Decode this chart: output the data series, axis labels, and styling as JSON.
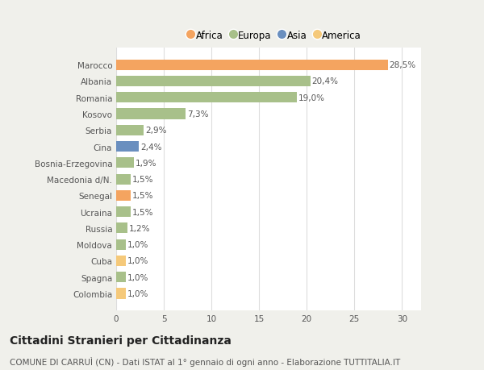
{
  "categories": [
    "Colombia",
    "Spagna",
    "Cuba",
    "Moldova",
    "Russia",
    "Ucraina",
    "Senegal",
    "Macedonia d/N.",
    "Bosnia-Erzegovina",
    "Cina",
    "Serbia",
    "Kosovo",
    "Romania",
    "Albania",
    "Marocco"
  ],
  "values": [
    1.0,
    1.0,
    1.0,
    1.0,
    1.2,
    1.5,
    1.5,
    1.5,
    1.9,
    2.4,
    2.9,
    7.3,
    19.0,
    20.4,
    28.5
  ],
  "labels": [
    "1,0%",
    "1,0%",
    "1,0%",
    "1,0%",
    "1,2%",
    "1,5%",
    "1,5%",
    "1,5%",
    "1,9%",
    "2,4%",
    "2,9%",
    "7,3%",
    "19,0%",
    "20,4%",
    "28,5%"
  ],
  "bar_colors": [
    "#F5C97A",
    "#A8C08A",
    "#F5C97A",
    "#A8C08A",
    "#A8C08A",
    "#A8C08A",
    "#F4A460",
    "#A8C08A",
    "#A8C08A",
    "#6A8FBF",
    "#A8C08A",
    "#A8C08A",
    "#A8C08A",
    "#A8C08A",
    "#F4A460"
  ],
  "legend_labels": [
    "Africa",
    "Europa",
    "Asia",
    "America"
  ],
  "legend_colors": [
    "#F4A460",
    "#A8C08A",
    "#6A8FBF",
    "#F5C97A"
  ],
  "title": "Cittadini Stranieri per Cittadinanza",
  "subtitle": "COMUNE DI CARRUÌ (CN) - Dati ISTAT al 1° gennaio di ogni anno - Elaborazione TUTTITALIA.IT",
  "xlim": [
    0,
    32
  ],
  "xticks": [
    0,
    5,
    10,
    15,
    20,
    25,
    30
  ],
  "background_color": "#f0f0eb",
  "plot_bg_color": "#ffffff",
  "title_fontsize": 10,
  "subtitle_fontsize": 7.5,
  "label_fontsize": 7.5,
  "tick_fontsize": 7.5,
  "legend_fontsize": 8.5
}
